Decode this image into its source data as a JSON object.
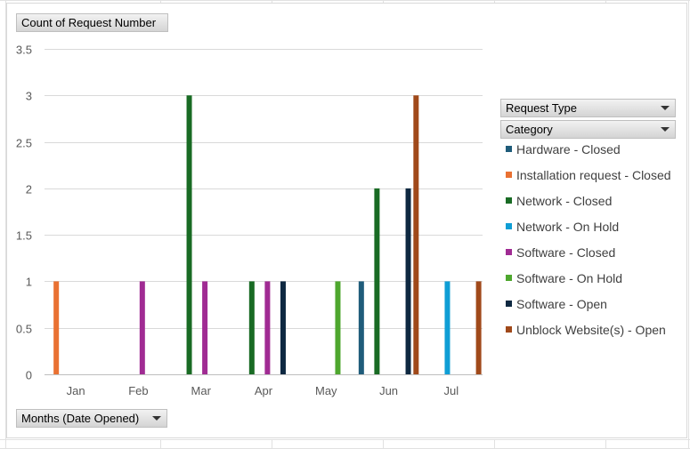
{
  "chart_data": {
    "type": "bar",
    "value_field_label": "Count of Request Number",
    "axis_field_label": "Months (Date Opened)",
    "filter_field_label": "Request Type",
    "legend_field_label": "Category",
    "categories": [
      "Jan",
      "Feb",
      "Mar",
      "Apr",
      "May",
      "Jun",
      "Jul"
    ],
    "ylim": [
      0,
      3.5
    ],
    "yticks": [
      "0",
      "0.5",
      "1",
      "1.5",
      "2",
      "2.5",
      "3",
      "3.5"
    ],
    "grid": true,
    "legend_position": "right",
    "series": [
      {
        "name": "Hardware - Closed",
        "color": "#1f5c7a",
        "values": [
          null,
          null,
          null,
          null,
          null,
          1,
          null
        ]
      },
      {
        "name": "Installation request - Closed",
        "color": "#e97132",
        "values": [
          1,
          null,
          null,
          null,
          null,
          null,
          null
        ]
      },
      {
        "name": "Network - Closed",
        "color": "#196b24",
        "values": [
          null,
          null,
          3,
          1,
          null,
          2,
          null
        ]
      },
      {
        "name": "Network - On Hold",
        "color": "#0f9ed5",
        "values": [
          null,
          null,
          null,
          null,
          null,
          null,
          1
        ]
      },
      {
        "name": "Software - Closed",
        "color": "#a02b93",
        "values": [
          null,
          1,
          1,
          1,
          null,
          null,
          null
        ]
      },
      {
        "name": "Software - On Hold",
        "color": "#4ea72e",
        "values": [
          null,
          null,
          null,
          null,
          1,
          null,
          null
        ]
      },
      {
        "name": "Software - Open",
        "color": "#0e2841",
        "values": [
          null,
          null,
          null,
          1,
          null,
          2,
          null
        ]
      },
      {
        "name": "Unblock Website(s) - Open",
        "color": "#a0491a",
        "values": [
          null,
          null,
          null,
          null,
          null,
          3,
          1
        ]
      }
    ]
  }
}
